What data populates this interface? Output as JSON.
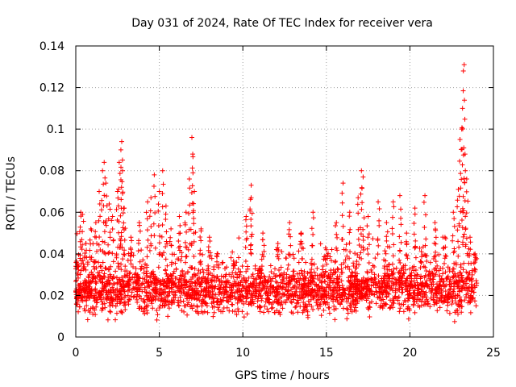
{
  "chart_data": {
    "type": "scatter",
    "title": "Day 031 of 2024, Rate Of TEC Index for receiver vera",
    "xlabel": "GPS time / hours",
    "ylabel": "ROTI / TECUs",
    "xlim": [
      0,
      25
    ],
    "ylim": [
      0,
      0.14
    ],
    "xticks": [
      0,
      5,
      10,
      15,
      20,
      25
    ],
    "yticks": [
      0,
      0.02,
      0.04,
      0.06,
      0.08,
      0.1,
      0.12,
      0.14
    ],
    "xtick_labels": [
      "0",
      "5",
      "10",
      "15",
      "20",
      "25"
    ],
    "ytick_labels": [
      "0",
      "0.02",
      "0.04",
      "0.06",
      "0.08",
      "0.1",
      "0.12",
      "0.14"
    ],
    "grid": true,
    "marker": "+",
    "marker_color": "#ff0000",
    "series": [
      {
        "name": "ROTI",
        "points": [
          [
            0.1,
            0.035
          ],
          [
            0.3,
            0.06
          ],
          [
            0.4,
            0.059
          ],
          [
            0.6,
            0.045
          ],
          [
            0.9,
            0.052
          ],
          [
            1.2,
            0.055
          ],
          [
            1.4,
            0.07
          ],
          [
            1.6,
            0.08
          ],
          [
            1.7,
            0.084
          ],
          [
            1.8,
            0.074
          ],
          [
            2.0,
            0.064
          ],
          [
            2.2,
            0.058
          ],
          [
            2.5,
            0.07
          ],
          [
            2.6,
            0.084
          ],
          [
            2.7,
            0.09
          ],
          [
            2.75,
            0.094
          ],
          [
            2.8,
            0.08
          ],
          [
            2.9,
            0.062
          ],
          [
            3.3,
            0.048
          ],
          [
            3.8,
            0.055
          ],
          [
            4.3,
            0.065
          ],
          [
            4.5,
            0.067
          ],
          [
            4.7,
            0.078
          ],
          [
            5.0,
            0.07
          ],
          [
            5.2,
            0.08
          ],
          [
            5.4,
            0.063
          ],
          [
            5.7,
            0.052
          ],
          [
            6.2,
            0.058
          ],
          [
            6.6,
            0.06
          ],
          [
            6.8,
            0.076
          ],
          [
            6.95,
            0.096
          ],
          [
            7.0,
            0.088
          ],
          [
            7.1,
            0.07
          ],
          [
            7.5,
            0.052
          ],
          [
            8.0,
            0.048
          ],
          [
            8.5,
            0.04
          ],
          [
            9.5,
            0.035
          ],
          [
            10.2,
            0.058
          ],
          [
            10.5,
            0.073
          ],
          [
            10.5,
            0.067
          ],
          [
            11.2,
            0.05
          ],
          [
            12.1,
            0.045
          ],
          [
            12.8,
            0.055
          ],
          [
            13.5,
            0.05
          ],
          [
            14.2,
            0.06
          ],
          [
            15.0,
            0.042
          ],
          [
            15.6,
            0.055
          ],
          [
            16.0,
            0.074
          ],
          [
            16.4,
            0.06
          ],
          [
            16.9,
            0.067
          ],
          [
            17.1,
            0.08
          ],
          [
            17.2,
            0.077
          ],
          [
            17.5,
            0.058
          ],
          [
            18.1,
            0.065
          ],
          [
            18.6,
            0.055
          ],
          [
            19.0,
            0.065
          ],
          [
            19.4,
            0.068
          ],
          [
            19.8,
            0.05
          ],
          [
            20.3,
            0.062
          ],
          [
            20.9,
            0.068
          ],
          [
            21.5,
            0.055
          ],
          [
            22.1,
            0.048
          ],
          [
            22.6,
            0.06
          ],
          [
            22.9,
            0.071
          ],
          [
            23.0,
            0.095
          ],
          [
            23.1,
            0.1
          ],
          [
            23.15,
            0.11
          ],
          [
            23.2,
            0.128
          ],
          [
            23.25,
            0.131
          ],
          [
            23.3,
            0.088
          ],
          [
            23.4,
            0.076
          ],
          [
            23.6,
            0.048
          ],
          [
            23.9,
            0.04
          ]
        ],
        "background_band": {
          "x_range": [
            0,
            24
          ],
          "typical_min": 0.006,
          "typical_max": 0.035,
          "center": 0.017
        }
      }
    ]
  }
}
